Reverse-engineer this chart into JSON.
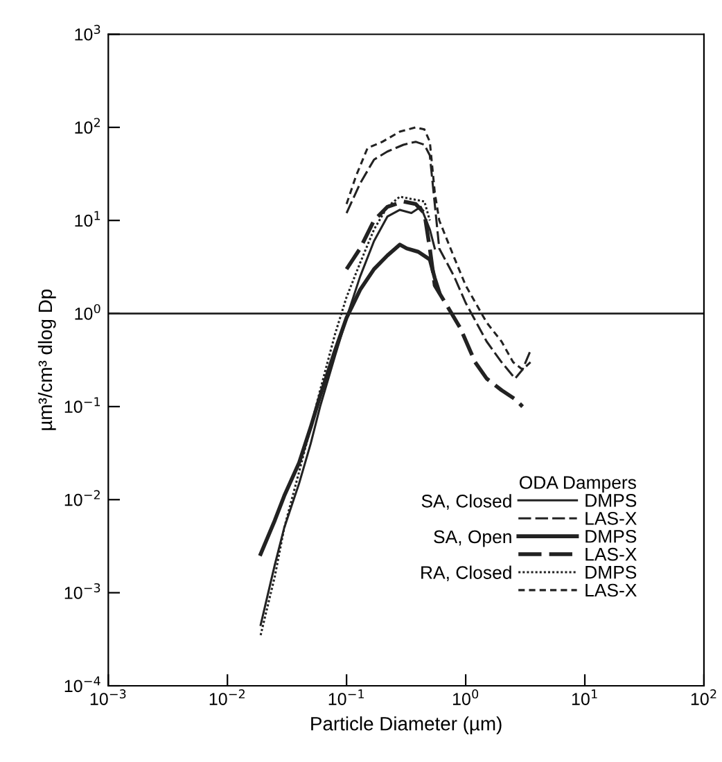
{
  "chart_data": {
    "type": "line",
    "xlabel": "Particle Diameter (µm)",
    "ylabel": "µm³/cm³ dlog Dp",
    "legend_title": "ODA Dampers",
    "annotations": [
      "SA, Closed",
      "SA, Open",
      "RA, Closed"
    ],
    "log": "xy",
    "grid": false,
    "legend": "lower right",
    "marker": "none",
    "xlim": [
      0.001,
      100
    ],
    "ylim": [
      0.0001,
      1000
    ],
    "xticks": [
      {
        "value": 0.001,
        "label": "10$^{−3}$"
      },
      {
        "value": 0.01,
        "label": "10$^{−2}$"
      },
      {
        "value": 0.1,
        "label": "10$^{−1}$"
      },
      {
        "value": 1,
        "label": "10$^{0}$"
      },
      {
        "value": 10,
        "label": "10$^{1}$"
      },
      {
        "value": 100,
        "label": "10$^{2}$"
      }
    ],
    "yticks": [
      {
        "value": 0.0001,
        "label": "10$^{−4}$"
      },
      {
        "value": 0.001,
        "label": "10$^{−3}$"
      },
      {
        "value": 0.01,
        "label": "10$^{−2}$"
      },
      {
        "value": 0.1,
        "label": "10$^{−1}$"
      },
      {
        "value": 1,
        "label": "10$^{0}$"
      },
      {
        "value": 10,
        "label": "10$^{1}$"
      },
      {
        "value": 100,
        "label": "10$^{2}$"
      },
      {
        "value": 1000,
        "label": "10$^{3}$"
      }
    ],
    "ref_lines": [
      {
        "axis": "y",
        "value": 1,
        "color": "#222222",
        "line_style": "solid"
      }
    ],
    "series": [
      {
        "name": "DMPS",
        "color": "#222222",
        "line_style": "solid",
        "x": [
          0.019,
          0.022,
          0.025,
          0.03,
          0.04,
          0.05,
          0.06,
          0.08,
          0.1,
          0.13,
          0.17,
          0.22,
          0.28,
          0.35,
          0.42,
          0.5,
          0.55
        ],
        "values": [
          0.00045,
          0.001,
          0.002,
          0.005,
          0.015,
          0.04,
          0.1,
          0.35,
          0.9,
          2.5,
          6,
          11,
          13,
          12,
          14,
          8,
          5
        ]
      },
      {
        "name": "LAS-X",
        "color": "#222222",
        "line_style": "dashed",
        "x": [
          0.1,
          0.13,
          0.17,
          0.22,
          0.3,
          0.38,
          0.45,
          0.5,
          0.55,
          0.6,
          0.8,
          1.0,
          1.5,
          2,
          2.6,
          3,
          3.5
        ],
        "values": [
          12,
          25,
          45,
          55,
          65,
          70,
          65,
          50,
          15,
          5,
          2.5,
          1.3,
          0.5,
          0.3,
          0.2,
          0.25,
          0.4
        ]
      },
      {
        "name": "DMPS",
        "color": "#222222",
        "line_style": "solid",
        "x": [
          0.019,
          0.025,
          0.03,
          0.04,
          0.05,
          0.06,
          0.08,
          0.1,
          0.13,
          0.17,
          0.22,
          0.28,
          0.32,
          0.4,
          0.5,
          0.55,
          0.6
        ],
        "values": [
          0.0026,
          0.006,
          0.011,
          0.025,
          0.06,
          0.13,
          0.4,
          0.9,
          1.8,
          3,
          4.2,
          5.5,
          5,
          4.6,
          3.8,
          2.4,
          1.7
        ]
      },
      {
        "name": "LAS-X",
        "color": "#222222",
        "line_style": "dashed",
        "x": [
          0.1,
          0.13,
          0.17,
          0.22,
          0.3,
          0.38,
          0.45,
          0.5,
          0.55,
          0.7,
          0.9,
          1.2,
          1.5,
          2,
          2.6,
          3
        ],
        "values": [
          3,
          5,
          10,
          14,
          16,
          15,
          12,
          5,
          2,
          1.2,
          0.7,
          0.3,
          0.2,
          0.15,
          0.12,
          0.1
        ]
      },
      {
        "name": "DMPS",
        "color": "#222222",
        "line_style": "dotted",
        "x": [
          0.019,
          0.025,
          0.03,
          0.04,
          0.05,
          0.06,
          0.08,
          0.1,
          0.13,
          0.17,
          0.22,
          0.28,
          0.35,
          0.45,
          0.5
        ],
        "values": [
          0.00035,
          0.0015,
          0.005,
          0.02,
          0.06,
          0.15,
          0.6,
          1.5,
          3.5,
          8,
          14,
          18,
          17,
          16,
          10
        ]
      },
      {
        "name": "LAS-X",
        "color": "#222222",
        "line_style": "short dashed",
        "x": [
          0.1,
          0.12,
          0.15,
          0.2,
          0.28,
          0.38,
          0.45,
          0.5,
          0.55,
          0.6,
          0.8,
          1.0,
          1.5,
          2,
          2.5,
          3,
          3.5
        ],
        "values": [
          15,
          30,
          60,
          70,
          90,
          100,
          95,
          70,
          20,
          10,
          4,
          2,
          0.8,
          0.5,
          0.3,
          0.25,
          0.3
        ]
      }
    ]
  }
}
